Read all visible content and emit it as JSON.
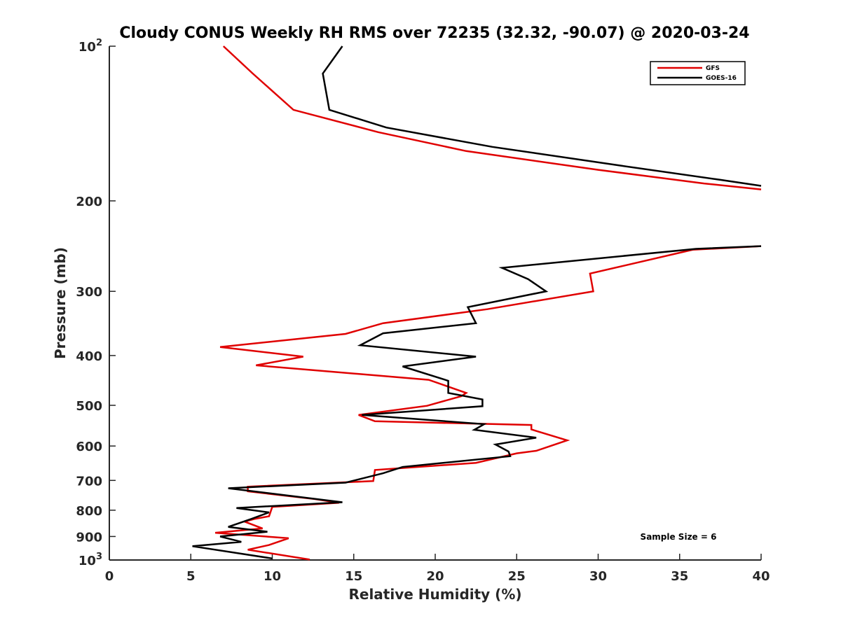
{
  "chart_data": {
    "type": "line",
    "title": "Cloudy CONUS Weekly RH RMS over 72235 (32.32, -90.07) @ 2020-03-24",
    "xlabel": "Relative Humidity (%)",
    "ylabel": "Pressure (mb)",
    "xlim": [
      0,
      40
    ],
    "ylim": [
      1000,
      100
    ],
    "yscale": "log",
    "y_reversed": true,
    "x_ticks": [
      "0",
      "5",
      "10",
      "15",
      "20",
      "25",
      "30",
      "35",
      "40"
    ],
    "y_ticks": [
      {
        "value": 100,
        "label": "10",
        "sup": "2"
      },
      {
        "value": 200,
        "label": "200",
        "sup": ""
      },
      {
        "value": 300,
        "label": "300",
        "sup": ""
      },
      {
        "value": 400,
        "label": "400",
        "sup": ""
      },
      {
        "value": 500,
        "label": "500",
        "sup": ""
      },
      {
        "value": 600,
        "label": "600",
        "sup": ""
      },
      {
        "value": 700,
        "label": "700",
        "sup": ""
      },
      {
        "value": 800,
        "label": "800",
        "sup": ""
      },
      {
        "value": 900,
        "label": "900",
        "sup": ""
      },
      {
        "value": 1000,
        "label": "10",
        "sup": "3"
      }
    ],
    "legend": {
      "placement": "top-right"
    },
    "annotation": "Sample Size = 6",
    "series": [
      {
        "name": "GFS",
        "color": "#e00000",
        "points": [
          [
            7.0,
            100
          ],
          [
            8.8,
            113
          ],
          [
            11.3,
            133
          ],
          [
            16.5,
            147
          ],
          [
            21.9,
            160
          ],
          [
            30.0,
            174
          ],
          [
            36.5,
            185
          ],
          [
            40.0,
            190
          ],
          [
            null,
            null
          ],
          [
            40.0,
            245
          ],
          [
            35.8,
            249
          ],
          [
            29.5,
            277
          ],
          [
            29.7,
            300
          ],
          [
            23.2,
            325
          ],
          [
            16.8,
            346
          ],
          [
            14.5,
            363
          ],
          [
            6.8,
            385
          ],
          [
            11.9,
            402
          ],
          [
            9.0,
            418
          ],
          [
            19.6,
            446
          ],
          [
            21.9,
            473
          ],
          [
            21.6,
            480
          ],
          [
            19.5,
            501
          ],
          [
            15.3,
            522
          ],
          [
            16.3,
            537
          ],
          [
            25.9,
            546
          ],
          [
            25.9,
            557
          ],
          [
            28.1,
            585
          ],
          [
            26.2,
            613
          ],
          [
            25.0,
            620
          ],
          [
            22.5,
            647
          ],
          [
            16.3,
            668
          ],
          [
            16.2,
            702
          ],
          [
            8.5,
            720
          ],
          [
            8.5,
            735
          ],
          [
            12.6,
            761
          ],
          [
            14.1,
            774
          ],
          [
            10.0,
            788
          ],
          [
            9.8,
            822
          ],
          [
            8.9,
            832
          ],
          [
            8.3,
            842
          ],
          [
            9.4,
            868
          ],
          [
            6.5,
            885
          ],
          [
            11.0,
            907
          ],
          [
            9.8,
            935
          ],
          [
            8.5,
            955
          ],
          [
            12.3,
            998
          ]
        ]
      },
      {
        "name": "GOES-16",
        "color": "#000000",
        "points": [
          [
            14.3,
            100
          ],
          [
            13.1,
            113
          ],
          [
            13.5,
            133
          ],
          [
            17.0,
            144
          ],
          [
            23.5,
            157
          ],
          [
            31.5,
            171
          ],
          [
            37.5,
            182
          ],
          [
            40.0,
            187
          ],
          [
            null,
            null
          ],
          [
            40.0,
            245
          ],
          [
            36.0,
            248
          ],
          [
            24.1,
            270
          ],
          [
            25.7,
            284
          ],
          [
            26.8,
            300
          ],
          [
            22.0,
            322
          ],
          [
            22.5,
            346
          ],
          [
            16.8,
            362
          ],
          [
            15.4,
            382
          ],
          [
            22.5,
            402
          ],
          [
            18.0,
            420
          ],
          [
            20.8,
            448
          ],
          [
            20.8,
            473
          ],
          [
            22.9,
            487
          ],
          [
            22.9,
            502
          ],
          [
            15.5,
            522
          ],
          [
            23.0,
            544
          ],
          [
            22.4,
            558
          ],
          [
            26.2,
            578
          ],
          [
            23.7,
            596
          ],
          [
            24.5,
            615
          ],
          [
            24.6,
            628
          ],
          [
            18.0,
            659
          ],
          [
            16.8,
            678
          ],
          [
            14.5,
            707
          ],
          [
            7.3,
            725
          ],
          [
            14.3,
            772
          ],
          [
            7.8,
            792
          ],
          [
            9.8,
            808
          ],
          [
            8.7,
            832
          ],
          [
            7.3,
            862
          ],
          [
            9.7,
            881
          ],
          [
            6.8,
            900
          ],
          [
            8.1,
            922
          ],
          [
            5.1,
            940
          ],
          [
            10.0,
            993
          ]
        ]
      }
    ]
  }
}
